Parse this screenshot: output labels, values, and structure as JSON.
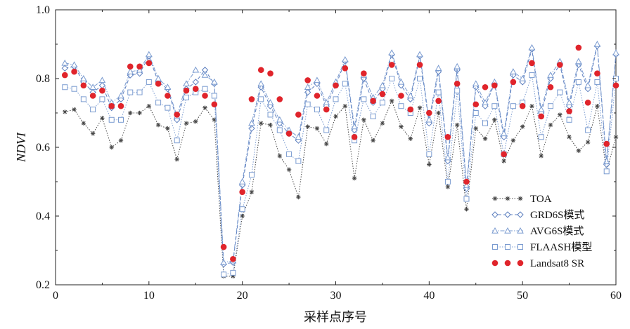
{
  "chart_data": {
    "type": "line",
    "xlabel": "采样点序号",
    "ylabel": "NDVI",
    "xlim": [
      0,
      60
    ],
    "ylim": [
      0.2,
      1.0
    ],
    "x_ticks": [
      "0",
      "10",
      "20",
      "30",
      "40",
      "50",
      "60"
    ],
    "y_ticks": [
      "0.2",
      "0.4",
      "0.6",
      "0.8",
      "1.0"
    ],
    "grid": false,
    "legend_position": "lower-right",
    "x": [
      1,
      2,
      3,
      4,
      5,
      6,
      7,
      8,
      9,
      10,
      11,
      12,
      13,
      14,
      15,
      16,
      17,
      18,
      19,
      20,
      21,
      22,
      23,
      24,
      25,
      26,
      27,
      28,
      29,
      30,
      31,
      32,
      33,
      34,
      35,
      36,
      37,
      38,
      39,
      40,
      41,
      42,
      43,
      44,
      45,
      46,
      47,
      48,
      49,
      50,
      51,
      52,
      53,
      54,
      55,
      56,
      57,
      58,
      59,
      60
    ],
    "series": [
      {
        "name": "TOA",
        "color": "#444444",
        "style": "dotted-star",
        "values": [
          0.703,
          0.71,
          0.67,
          0.64,
          0.685,
          0.6,
          0.62,
          0.7,
          0.7,
          0.72,
          0.665,
          0.655,
          0.565,
          0.67,
          0.675,
          0.715,
          0.68,
          0.225,
          0.225,
          0.4,
          0.47,
          0.67,
          0.665,
          0.575,
          0.535,
          0.455,
          0.66,
          0.655,
          0.61,
          0.69,
          0.72,
          0.51,
          0.68,
          0.62,
          0.67,
          0.735,
          0.66,
          0.625,
          0.715,
          0.55,
          0.7,
          0.485,
          0.665,
          0.42,
          0.655,
          0.625,
          0.68,
          0.56,
          0.62,
          0.66,
          0.72,
          0.575,
          0.665,
          0.695,
          0.63,
          0.59,
          0.615,
          0.72,
          0.53,
          0.63
        ]
      },
      {
        "name": "GRD6S模式",
        "color": "#5d7fbf",
        "style": "dashed-diamond",
        "values": [
          0.83,
          0.835,
          0.79,
          0.76,
          0.78,
          0.715,
          0.74,
          0.81,
          0.815,
          0.865,
          0.79,
          0.77,
          0.68,
          0.77,
          0.79,
          0.825,
          0.785,
          0.26,
          0.265,
          0.49,
          0.655,
          0.775,
          0.72,
          0.67,
          0.64,
          0.62,
          0.76,
          0.785,
          0.72,
          0.78,
          0.85,
          0.65,
          0.8,
          0.73,
          0.77,
          0.87,
          0.78,
          0.74,
          0.865,
          0.67,
          0.82,
          0.56,
          0.825,
          0.48,
          0.775,
          0.72,
          0.785,
          0.63,
          0.81,
          0.79,
          0.885,
          0.7,
          0.8,
          0.84,
          0.72,
          0.84,
          0.77,
          0.895,
          0.55,
          0.87
        ]
      },
      {
        "name": "AVG6S模式",
        "color": "#7a9bd0",
        "style": "dashdot-triangle",
        "values": [
          0.845,
          0.84,
          0.8,
          0.775,
          0.795,
          0.73,
          0.75,
          0.82,
          0.825,
          0.87,
          0.8,
          0.775,
          0.69,
          0.785,
          0.825,
          0.81,
          0.79,
          0.265,
          0.27,
          0.5,
          0.67,
          0.785,
          0.73,
          0.68,
          0.65,
          0.63,
          0.775,
          0.795,
          0.73,
          0.79,
          0.855,
          0.66,
          0.81,
          0.745,
          0.78,
          0.875,
          0.79,
          0.75,
          0.87,
          0.68,
          0.83,
          0.57,
          0.835,
          0.49,
          0.785,
          0.73,
          0.79,
          0.64,
          0.82,
          0.8,
          0.89,
          0.71,
          0.81,
          0.85,
          0.73,
          0.85,
          0.78,
          0.9,
          0.56,
          0.875
        ]
      },
      {
        "name": "FLAASH模型",
        "color": "#7a9bd0",
        "style": "dotted-square",
        "values": [
          0.775,
          0.77,
          0.74,
          0.71,
          0.74,
          0.68,
          0.68,
          0.76,
          0.76,
          0.79,
          0.73,
          0.715,
          0.62,
          0.745,
          0.76,
          0.77,
          0.75,
          0.23,
          0.235,
          0.42,
          0.52,
          0.74,
          0.695,
          0.65,
          0.58,
          0.56,
          0.725,
          0.71,
          0.65,
          0.74,
          0.785,
          0.62,
          0.74,
          0.69,
          0.73,
          0.8,
          0.72,
          0.7,
          0.8,
          0.58,
          0.76,
          0.5,
          0.765,
          0.45,
          0.7,
          0.67,
          0.72,
          0.58,
          0.72,
          0.73,
          0.81,
          0.63,
          0.72,
          0.76,
          0.68,
          0.79,
          0.65,
          0.79,
          0.53,
          0.8
        ]
      },
      {
        "name": "Landsat8 SR",
        "color": "#e0242b",
        "style": "dots",
        "values": [
          0.81,
          0.82,
          0.78,
          0.75,
          0.765,
          0.72,
          0.72,
          0.835,
          0.835,
          0.845,
          0.785,
          0.75,
          0.695,
          0.765,
          0.77,
          0.75,
          0.725,
          0.31,
          0.275,
          0.47,
          0.74,
          0.825,
          0.815,
          0.74,
          0.64,
          0.695,
          0.795,
          0.75,
          0.71,
          0.78,
          0.83,
          0.63,
          0.815,
          0.735,
          0.755,
          0.84,
          0.75,
          0.71,
          0.84,
          0.7,
          0.735,
          0.63,
          0.785,
          0.5,
          0.725,
          0.775,
          0.78,
          0.58,
          0.79,
          0.72,
          0.845,
          0.69,
          0.775,
          0.84,
          0.705,
          0.89,
          0.73,
          0.815,
          0.61,
          0.78
        ]
      }
    ]
  }
}
